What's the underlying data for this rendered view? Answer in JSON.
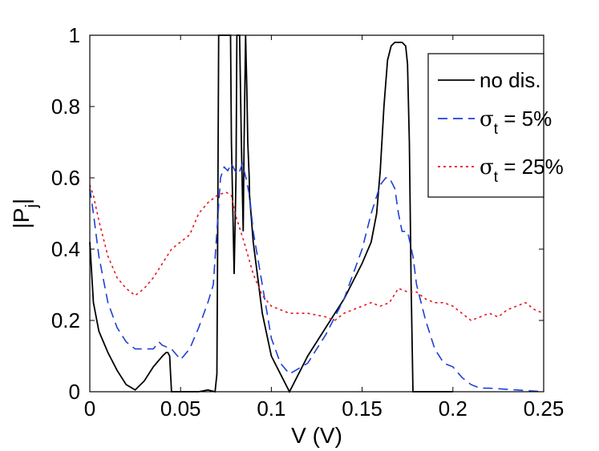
{
  "chart_data": {
    "type": "line",
    "xlabel": "V (V)",
    "ylabel": "|P_j|",
    "ylabel_main": "|P",
    "ylabel_sub": "j",
    "ylabel_end": "|",
    "xlim": [
      0,
      0.25
    ],
    "ylim": [
      0,
      1
    ],
    "grid": false,
    "legend_position": "top-right",
    "xticks": [
      0,
      0.05,
      0.1,
      0.15,
      0.2,
      0.25
    ],
    "xtick_labels": [
      "0",
      "0.05",
      "0.1",
      "0.15",
      "0.2",
      "0.25"
    ],
    "yticks": [
      0,
      0.2,
      0.4,
      0.6,
      0.8,
      1
    ],
    "ytick_labels": [
      "0",
      "0.2",
      "0.4",
      "0.6",
      "0.8",
      "1"
    ],
    "series": [
      {
        "name": "no dis.",
        "legend_main": "no dis.",
        "legend_sub": "",
        "legend_rest": "",
        "color": "#000000",
        "dash": "",
        "x": [
          0,
          0.002,
          0.005,
          0.01,
          0.015,
          0.02,
          0.025,
          0.03,
          0.035,
          0.04,
          0.042,
          0.043,
          0.044,
          0.0445,
          0.045,
          0.05,
          0.06,
          0.065,
          0.069,
          0.07,
          0.0705,
          0.071,
          0.072,
          0.073,
          0.074,
          0.075,
          0.0765,
          0.0775,
          0.078,
          0.079,
          0.0795,
          0.0805,
          0.081,
          0.082,
          0.0825,
          0.0835,
          0.0845,
          0.085,
          0.0858,
          0.0865,
          0.087,
          0.0878,
          0.088,
          0.09,
          0.095,
          0.1,
          0.105,
          0.11,
          0.12,
          0.13,
          0.14,
          0.15,
          0.155,
          0.158,
          0.16,
          0.162,
          0.164,
          0.166,
          0.168,
          0.17,
          0.172,
          0.174,
          0.175,
          0.176,
          0.177,
          0.178,
          0.18,
          0.2
        ],
        "y": [
          0.42,
          0.25,
          0.17,
          0.11,
          0.06,
          0.02,
          0.005,
          0.03,
          0.07,
          0.1,
          0.11,
          0.11,
          0.1,
          0.05,
          0.0,
          0.0,
          0.0,
          0.005,
          0.0,
          0.05,
          0.5,
          1.0,
          1.0,
          1.0,
          1.0,
          1.0,
          1.0,
          1.0,
          0.7,
          0.45,
          0.33,
          0.6,
          1.0,
          1.0,
          1.0,
          0.7,
          0.45,
          0.7,
          1.0,
          0.85,
          0.7,
          0.6,
          0.55,
          0.42,
          0.22,
          0.1,
          0.05,
          0.0,
          0.1,
          0.18,
          0.26,
          0.36,
          0.42,
          0.5,
          0.62,
          0.8,
          0.93,
          0.97,
          0.98,
          0.98,
          0.98,
          0.97,
          0.92,
          0.7,
          0.3,
          0.0,
          0.0,
          0.0
        ]
      },
      {
        "name": "σ_t = 5%",
        "legend_main": "σ",
        "legend_sub": "t",
        "legend_rest": " = 5%",
        "color": "#1f3fd6",
        "dash": "12,7",
        "x": [
          0,
          0.002,
          0.005,
          0.01,
          0.015,
          0.02,
          0.025,
          0.03,
          0.035,
          0.038,
          0.04,
          0.045,
          0.05,
          0.055,
          0.06,
          0.065,
          0.068,
          0.07,
          0.072,
          0.074,
          0.076,
          0.078,
          0.08,
          0.082,
          0.084,
          0.086,
          0.088,
          0.09,
          0.095,
          0.1,
          0.105,
          0.11,
          0.12,
          0.13,
          0.14,
          0.15,
          0.155,
          0.16,
          0.163,
          0.165,
          0.168,
          0.17,
          0.172,
          0.175,
          0.178,
          0.18,
          0.185,
          0.19,
          0.195,
          0.2,
          0.205,
          0.21,
          0.215,
          0.22,
          0.25
        ],
        "y": [
          0.57,
          0.5,
          0.38,
          0.25,
          0.18,
          0.14,
          0.12,
          0.12,
          0.12,
          0.14,
          0.13,
          0.12,
          0.09,
          0.12,
          0.18,
          0.25,
          0.3,
          0.45,
          0.6,
          0.63,
          0.62,
          0.64,
          0.62,
          0.61,
          0.64,
          0.6,
          0.55,
          0.45,
          0.3,
          0.15,
          0.08,
          0.05,
          0.08,
          0.16,
          0.26,
          0.4,
          0.5,
          0.58,
          0.6,
          0.6,
          0.57,
          0.5,
          0.45,
          0.45,
          0.38,
          0.3,
          0.2,
          0.12,
          0.08,
          0.07,
          0.04,
          0.02,
          0.01,
          0.01,
          0.0
        ]
      },
      {
        "name": "σ_t = 25%",
        "legend_main": "σ",
        "legend_sub": "t",
        "legend_rest": " = 25%",
        "color": "#e8141e",
        "dash": "3,4",
        "x": [
          0,
          0.002,
          0.005,
          0.01,
          0.015,
          0.02,
          0.025,
          0.03,
          0.035,
          0.04,
          0.045,
          0.05,
          0.055,
          0.06,
          0.065,
          0.07,
          0.075,
          0.078,
          0.08,
          0.085,
          0.09,
          0.095,
          0.1,
          0.105,
          0.11,
          0.12,
          0.13,
          0.135,
          0.14,
          0.145,
          0.15,
          0.155,
          0.16,
          0.165,
          0.17,
          0.175,
          0.18,
          0.185,
          0.19,
          0.195,
          0.2,
          0.205,
          0.21,
          0.215,
          0.22,
          0.225,
          0.23,
          0.235,
          0.24,
          0.245,
          0.25
        ],
        "y": [
          0.58,
          0.55,
          0.48,
          0.38,
          0.32,
          0.29,
          0.27,
          0.29,
          0.32,
          0.36,
          0.4,
          0.42,
          0.44,
          0.5,
          0.53,
          0.55,
          0.56,
          0.55,
          0.5,
          0.42,
          0.33,
          0.27,
          0.24,
          0.23,
          0.22,
          0.22,
          0.21,
          0.2,
          0.22,
          0.23,
          0.24,
          0.25,
          0.24,
          0.25,
          0.29,
          0.28,
          0.28,
          0.26,
          0.25,
          0.25,
          0.24,
          0.22,
          0.2,
          0.21,
          0.22,
          0.21,
          0.23,
          0.24,
          0.25,
          0.23,
          0.22
        ]
      }
    ]
  }
}
